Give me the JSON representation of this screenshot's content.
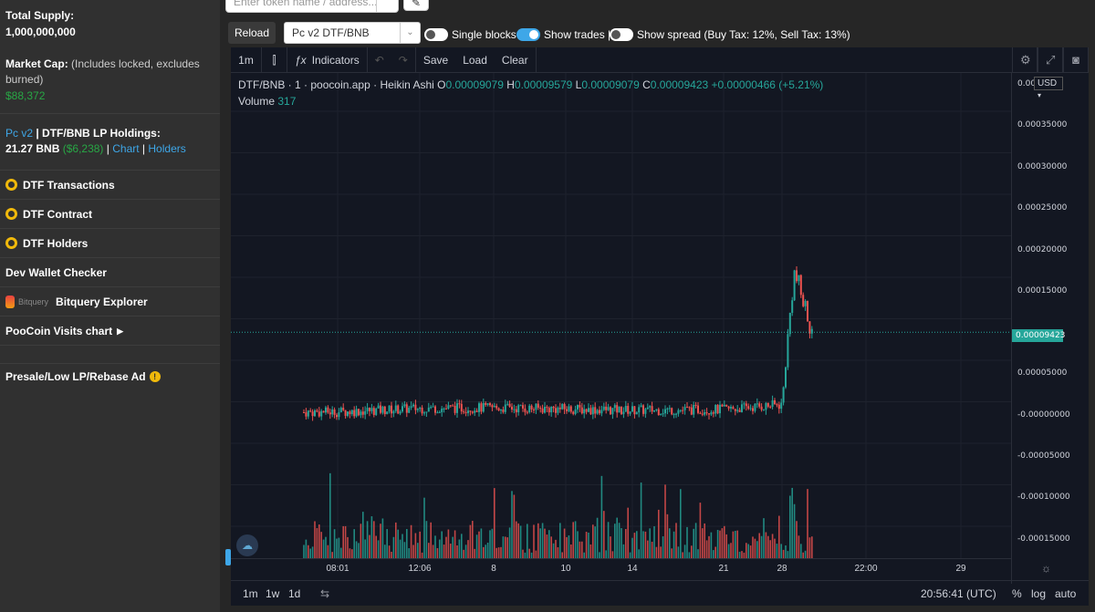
{
  "sidebar": {
    "total_supply_label": "Total Supply:",
    "total_supply_value": "1,000,000,000",
    "market_cap_label": "Market Cap:",
    "market_cap_note": "(Includes locked, excludes burned)",
    "market_cap_value": "$88,372",
    "lp_prefix": "Pc v2",
    "lp_label": "| DTF/BNB LP Holdings:",
    "lp_bnb": "21.27 BNB",
    "lp_usd": "($6,238)",
    "lp_sep1": "|",
    "lp_chart_link": "Chart",
    "lp_sep2": "|",
    "lp_holders_link": "Holders",
    "items": [
      {
        "label": "DTF Transactions",
        "icon": "bscscan-icon"
      },
      {
        "label": "DTF Contract",
        "icon": "bscscan-icon"
      },
      {
        "label": "DTF Holders",
        "icon": "bscscan-icon"
      },
      {
        "label": "Dev Wallet Checker",
        "icon": ""
      },
      {
        "label": "Bitquery Explorer",
        "icon": "bitquery-icon",
        "icon_text": "Bitquery"
      },
      {
        "label": "PooCoin Visits chart",
        "icon": "caret-right-icon"
      }
    ],
    "presale_label": "Presale/Low LP/Rebase Ad"
  },
  "top": {
    "token_placeholder": "Enter token name / address...",
    "reload_label": "Reload",
    "pair_selected": "Pc v2 DTF/BNB",
    "single_blocks_label": "Single blocks",
    "single_blocks_on": false,
    "show_trades_label": "Show trades |",
    "show_trades_on": true,
    "show_spread_label": "Show spread (Buy Tax: 12%, Sell Tax: 13%)",
    "show_spread_on": false
  },
  "toolbar": {
    "interval": "1m",
    "indicators_label": "Indicators",
    "save_label": "Save",
    "load_label": "Load",
    "clear_label": "Clear"
  },
  "legend": {
    "symbol": "DTF/BNB",
    "interval": "1",
    "source": "poocoin.app",
    "style": "Heikin Ashi",
    "o_label": "O",
    "o_value": "0.00009079",
    "h_label": "H",
    "h_value": "0.00009579",
    "l_label": "L",
    "l_value": "0.00009079",
    "c_label": "C",
    "c_value": "0.00009423",
    "change": "+0.00000466 (+5.21%)",
    "volume_label": "Volume",
    "volume_value": "317"
  },
  "price_axis": {
    "currency": "USD",
    "top_tick": "0.00",
    "ticks": [
      "0.00035000",
      "0.00030000",
      "0.00025000",
      "0.00020000",
      "0.00015000",
      "0.00005000",
      "-0.00000000",
      "-0.00005000",
      "-0.00010000",
      "-0.00015000"
    ],
    "current_price": "0.00009423"
  },
  "time_axis": {
    "ticks": [
      "08:01",
      "12:06",
      "8",
      "10",
      "14",
      "21",
      "28",
      "22:00",
      "29"
    ]
  },
  "bottom_bar": {
    "ranges": [
      "1m",
      "1w",
      "1d"
    ],
    "clock": "20:56:41 (UTC)",
    "percent_label": "%",
    "log_label": "log",
    "auto_label": "auto"
  },
  "colors": {
    "up": "#26a69a",
    "down": "#ef5350",
    "chart_bg": "#131722",
    "accent": "#3ea7e8",
    "green_text": "#28a745"
  },
  "chart_data": {
    "type": "candlestick",
    "style": "Heikin Ashi",
    "symbol": "DTF/BNB",
    "interval": "1",
    "y_axis_range": [
      -0.00017,
      0.0004
    ],
    "last_close": 9.423e-05,
    "price_path_approx": [
      {
        "x": "start",
        "y": -3e-08
      },
      {
        "x": "08:01",
        "y": 3e-07
      },
      {
        "x": "12:06",
        "y": 4.5e-06
      },
      {
        "x": "8",
        "y": 5.2e-06
      },
      {
        "x": "10",
        "y": 3.8e-06
      },
      {
        "x": "14",
        "y": 2.2e-06
      },
      {
        "x": "21",
        "y": 3e-06
      },
      {
        "x": "28",
        "y": 9e-06
      },
      {
        "x": "peak",
        "y": 0.000165
      },
      {
        "x": "end",
        "y": 9.423e-05
      }
    ],
    "volume_last": 317
  }
}
